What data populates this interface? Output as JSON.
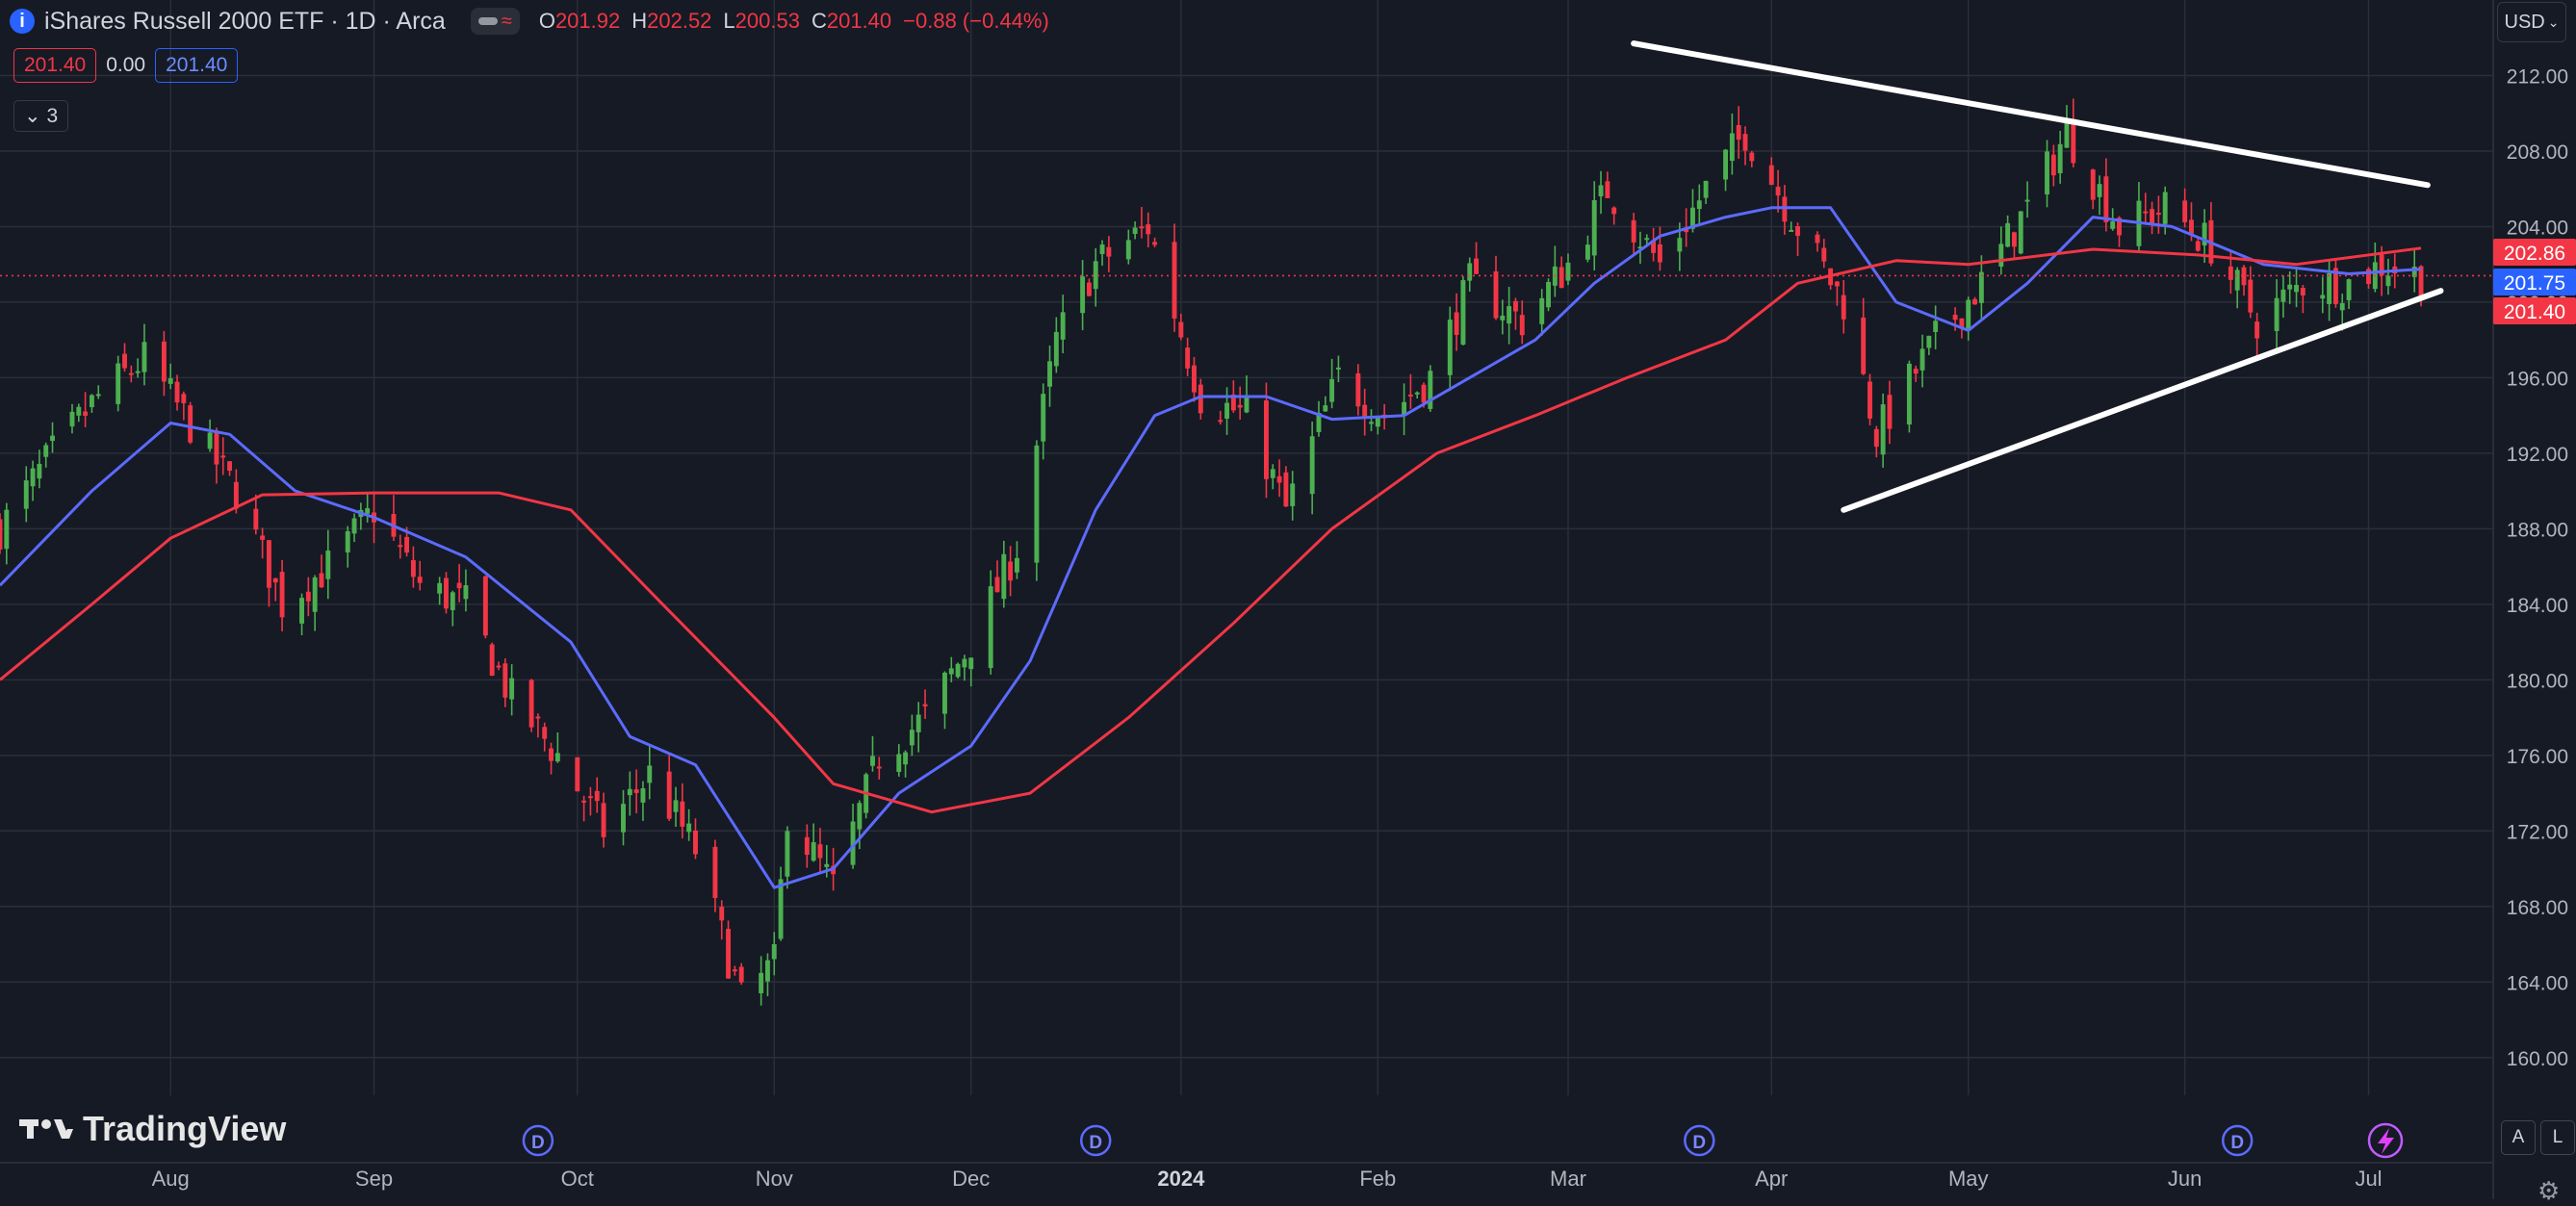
{
  "header": {
    "title": "iShares Russell 2000 ETF · 1D · Arca",
    "ohlc": [
      {
        "k": "O",
        "v": "201.92"
      },
      {
        "k": "H",
        "v": "202.52"
      },
      {
        "k": "L",
        "v": "200.53"
      },
      {
        "k": "C",
        "v": "201.40"
      },
      {
        "k": "",
        "v": "−0.88 (−0.44%)"
      }
    ],
    "bid": "201.40",
    "spread": "0.00",
    "ask": "201.40",
    "collapsed_count": "3",
    "currency": "USD"
  },
  "footer": {
    "brand": "TradingView",
    "auto_label": "A",
    "log_label": "L"
  },
  "colors": {
    "background": "#161a25",
    "grid": "#2a2e39",
    "up": "#4caf50",
    "down": "#f23645",
    "ma_fast": "#5c6bff",
    "ma_slow": "#f23645",
    "trendline": "#ffffff",
    "axis_text": "#b2b5be"
  },
  "chart_data": {
    "type": "candlestick",
    "symbol": "iShares Russell 2000 ETF",
    "interval": "1D",
    "exchange": "Arca",
    "ylim": [
      158,
      216
    ],
    "yticks": [
      160,
      164,
      168,
      172,
      176,
      180,
      184,
      188,
      192,
      196,
      200,
      204,
      208,
      212
    ],
    "ytick_labels": [
      "160.00",
      "164.00",
      "168.00",
      "172.00",
      "176.00",
      "180.00",
      "184.00",
      "188.00",
      "192.00",
      "196.00",
      "200.00",
      "204.00",
      "208.00",
      "212.00"
    ],
    "xlim": [
      "2023-07-06",
      "2024-07-20"
    ],
    "xticks": [
      {
        "date": "2023-08-01",
        "label": "Aug"
      },
      {
        "date": "2023-09-01",
        "label": "Sep"
      },
      {
        "date": "2023-10-02",
        "label": "Oct"
      },
      {
        "date": "2023-11-01",
        "label": "Nov"
      },
      {
        "date": "2023-12-01",
        "label": "Dec"
      },
      {
        "date": "2024-01-02",
        "label": "2024"
      },
      {
        "date": "2024-02-01",
        "label": "Feb"
      },
      {
        "date": "2024-03-01",
        "label": "Mar"
      },
      {
        "date": "2024-04-01",
        "label": "Apr"
      },
      {
        "date": "2024-05-01",
        "label": "May"
      },
      {
        "date": "2024-06-03",
        "label": "Jun"
      },
      {
        "date": "2024-07-01",
        "label": "Jul"
      }
    ],
    "dividend_markers": [
      "2023-09-26",
      "2023-12-20",
      "2024-03-21",
      "2024-06-11"
    ],
    "dividend_label": "D",
    "price_close_path": [
      [
        "2023-07-06",
        188
      ],
      [
        "2023-07-14",
        192
      ],
      [
        "2023-07-21",
        195
      ],
      [
        "2023-07-28",
        197
      ],
      [
        "2023-08-03",
        194
      ],
      [
        "2023-08-11",
        190
      ],
      [
        "2023-08-18",
        184
      ],
      [
        "2023-08-25",
        186
      ],
      [
        "2023-09-01",
        189
      ],
      [
        "2023-09-08",
        185
      ],
      [
        "2023-09-15",
        184
      ],
      [
        "2023-09-22",
        179
      ],
      [
        "2023-09-29",
        176
      ],
      [
        "2023-10-06",
        172
      ],
      [
        "2023-10-13",
        175
      ],
      [
        "2023-10-20",
        171
      ],
      [
        "2023-10-27",
        163
      ],
      [
        "2023-11-01",
        165
      ],
      [
        "2023-11-03",
        173
      ],
      [
        "2023-11-10",
        169
      ],
      [
        "2023-11-17",
        176
      ],
      [
        "2023-11-24",
        178
      ],
      [
        "2023-12-01",
        182
      ],
      [
        "2023-12-08",
        187
      ],
      [
        "2023-12-14",
        198
      ],
      [
        "2023-12-20",
        202
      ],
      [
        "2023-12-28",
        204
      ],
      [
        "2024-01-05",
        195
      ],
      [
        "2024-01-12",
        194
      ],
      [
        "2024-01-18",
        189
      ],
      [
        "2024-01-26",
        196
      ],
      [
        "2024-02-02",
        194
      ],
      [
        "2024-02-09",
        196
      ],
      [
        "2024-02-15",
        201
      ],
      [
        "2024-02-23",
        199
      ],
      [
        "2024-03-01",
        202
      ],
      [
        "2024-03-07",
        206
      ],
      [
        "2024-03-15",
        202
      ],
      [
        "2024-03-22",
        206
      ],
      [
        "2024-03-28",
        209
      ],
      [
        "2024-04-05",
        204
      ],
      [
        "2024-04-12",
        200
      ],
      [
        "2024-04-17",
        193
      ],
      [
        "2024-04-26",
        198
      ],
      [
        "2024-05-03",
        201
      ],
      [
        "2024-05-10",
        205
      ],
      [
        "2024-05-16",
        209
      ],
      [
        "2024-05-24",
        204
      ],
      [
        "2024-05-31",
        205
      ],
      [
        "2024-06-07",
        203
      ],
      [
        "2024-06-14",
        199
      ],
      [
        "2024-06-21",
        201
      ],
      [
        "2024-06-28",
        201
      ],
      [
        "2024-07-03",
        202
      ],
      [
        "2024-07-09",
        201.4
      ]
    ],
    "series": [
      {
        "name": "",
        "kind": "moving-average-fast",
        "points": [
          [
            "2023-07-06",
            185
          ],
          [
            "2023-07-20",
            190
          ],
          [
            "2023-08-01",
            193.6
          ],
          [
            "2023-08-10",
            193
          ],
          [
            "2023-08-20",
            190
          ],
          [
            "2023-09-01",
            188.6
          ],
          [
            "2023-09-15",
            186.5
          ],
          [
            "2023-10-01",
            182
          ],
          [
            "2023-10-10",
            177
          ],
          [
            "2023-10-20",
            175.5
          ],
          [
            "2023-11-01",
            169
          ],
          [
            "2023-11-10",
            170
          ],
          [
            "2023-11-20",
            174
          ],
          [
            "2023-12-01",
            176.5
          ],
          [
            "2023-12-10",
            181
          ],
          [
            "2023-12-20",
            189
          ],
          [
            "2023-12-29",
            194
          ],
          [
            "2024-01-05",
            195
          ],
          [
            "2024-01-15",
            195
          ],
          [
            "2024-01-25",
            193.8
          ],
          [
            "2024-02-05",
            194
          ],
          [
            "2024-02-15",
            196
          ],
          [
            "2024-02-25",
            198
          ],
          [
            "2024-03-05",
            201
          ],
          [
            "2024-03-15",
            203.5
          ],
          [
            "2024-03-25",
            204.5
          ],
          [
            "2024-04-01",
            205
          ],
          [
            "2024-04-10",
            205
          ],
          [
            "2024-04-20",
            200
          ],
          [
            "2024-05-01",
            198.5
          ],
          [
            "2024-05-10",
            201
          ],
          [
            "2024-05-20",
            204.5
          ],
          [
            "2024-06-01",
            204
          ],
          [
            "2024-06-15",
            202
          ],
          [
            "2024-06-28",
            201.5
          ],
          [
            "2024-07-09",
            201.75
          ]
        ]
      },
      {
        "name": "",
        "kind": "moving-average-slow",
        "points": [
          [
            "2023-07-06",
            180
          ],
          [
            "2023-07-20",
            184
          ],
          [
            "2023-08-01",
            187.5
          ],
          [
            "2023-08-15",
            189.8
          ],
          [
            "2023-09-01",
            189.9
          ],
          [
            "2023-09-20",
            189.9
          ],
          [
            "2023-10-01",
            189
          ],
          [
            "2023-10-15",
            184
          ],
          [
            "2023-11-01",
            178
          ],
          [
            "2023-11-10",
            174.5
          ],
          [
            "2023-11-25",
            173
          ],
          [
            "2023-12-10",
            174
          ],
          [
            "2023-12-25",
            178
          ],
          [
            "2024-01-10",
            183
          ],
          [
            "2024-01-25",
            188
          ],
          [
            "2024-02-10",
            192
          ],
          [
            "2024-02-25",
            194
          ],
          [
            "2024-03-10",
            196
          ],
          [
            "2024-03-25",
            198
          ],
          [
            "2024-04-05",
            201
          ],
          [
            "2024-04-20",
            202.2
          ],
          [
            "2024-05-01",
            202
          ],
          [
            "2024-05-20",
            202.8
          ],
          [
            "2024-06-05",
            202.5
          ],
          [
            "2024-06-20",
            202
          ],
          [
            "2024-07-09",
            202.86
          ]
        ]
      }
    ],
    "trendlines": [
      {
        "kind": "resistance",
        "start": [
          "2024-03-11",
          213.7
        ],
        "end": [
          "2024-07-10",
          206.2
        ]
      },
      {
        "kind": "support",
        "start": [
          "2024-04-12",
          189
        ],
        "end": [
          "2024-07-12",
          200.6
        ]
      }
    ],
    "last_price": 201.4,
    "price_tags": [
      {
        "value": 202.86,
        "label": "202.86",
        "color": "#f23645"
      },
      {
        "value": 201.75,
        "label": "201.75",
        "color": "#2962ff"
      },
      {
        "value": 201.4,
        "label": "201.40",
        "color": "#f23645"
      }
    ]
  }
}
